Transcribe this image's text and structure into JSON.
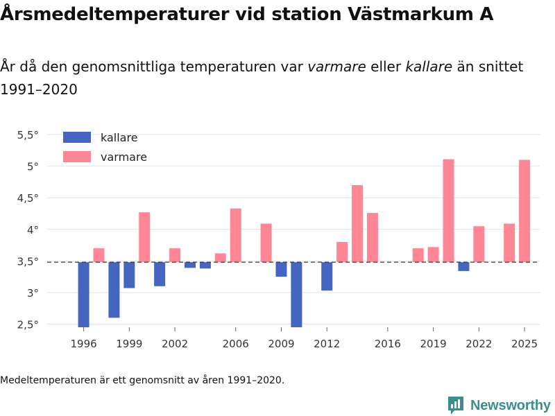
{
  "title": "Årsmedeltemperaturer vid station Västmarkum A",
  "subtitle": {
    "part1": "År då den genomsnittliga temperaturen var ",
    "em1": "varmare",
    "part2": " eller ",
    "em2": "kallare",
    "part3": " än snittet 1991–2020"
  },
  "footnote": "Medeltemperaturen är ett genomsnitt av åren 1991–2020.",
  "logo_text": "Newsworthy",
  "colors": {
    "cold": "#4466c0",
    "warm": "#ff8795",
    "grid": "#e3e3e3",
    "mean_line": "#333333",
    "logo": "#3a8f8a"
  },
  "chart_data": {
    "type": "bar",
    "title": "Årsmedeltemperaturer vid station Västmarkum A",
    "xlabel": "",
    "ylabel": "",
    "baseline": 3.48,
    "ylim": [
      2.45,
      5.6
    ],
    "xlim": [
      1993.6,
      2026.0
    ],
    "yticks": [
      2.5,
      3,
      3.5,
      4,
      4.5,
      5,
      5.5
    ],
    "ytick_labels": [
      "2,5°",
      "3°",
      "3,5°",
      "4°",
      "4,5°",
      "5°",
      "5,5°"
    ],
    "xticks": [
      1996,
      1999,
      2002,
      2006,
      2009,
      2012,
      2016,
      2019,
      2022,
      2025
    ],
    "xtick_labels": [
      "1996",
      "1999",
      "2002",
      "2006",
      "2009",
      "2012",
      "2016",
      "2019",
      "2022",
      "2025"
    ],
    "legend": [
      {
        "label": "kallare",
        "key": "cold"
      },
      {
        "label": "varmare",
        "key": "warm"
      }
    ],
    "legend_position": "top-left",
    "years": [
      1996,
      1997,
      1998,
      1999,
      2000,
      2001,
      2002,
      2003,
      2004,
      2005,
      2006,
      2008,
      2009,
      2010,
      2012,
      2013,
      2014,
      2015,
      2018,
      2019,
      2020,
      2021,
      2022,
      2024,
      2025
    ],
    "values": [
      2.43,
      3.7,
      2.6,
      3.07,
      4.27,
      3.1,
      3.7,
      3.39,
      3.38,
      3.62,
      4.33,
      4.09,
      3.25,
      2.43,
      3.03,
      3.8,
      4.7,
      4.26,
      3.7,
      3.72,
      5.11,
      3.34,
      4.05,
      4.09,
      5.1
    ]
  }
}
